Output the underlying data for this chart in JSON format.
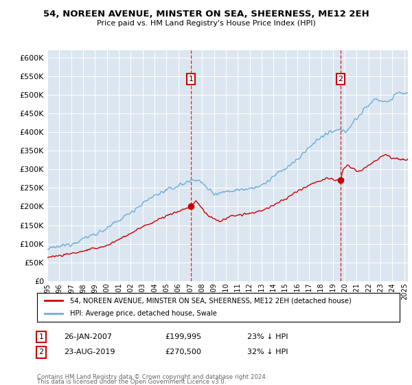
{
  "title": "54, NOREEN AVENUE, MINSTER ON SEA, SHEERNESS, ME12 2EH",
  "subtitle": "Price paid vs. HM Land Registry's House Price Index (HPI)",
  "ylim": [
    0,
    620000
  ],
  "yticks": [
    0,
    50000,
    100000,
    150000,
    200000,
    250000,
    300000,
    350000,
    400000,
    450000,
    500000,
    550000,
    600000
  ],
  "plot_bg": "#dce6f0",
  "hpi_color": "#6baed6",
  "price_color": "#cc0000",
  "sale1": {
    "date_label": "26-JAN-2007",
    "price": 199995,
    "price_str": "£199,995",
    "pct": "23% ↓ HPI",
    "x_year": 2007.07
  },
  "sale2": {
    "date_label": "23-AUG-2019",
    "price": 270500,
    "price_str": "£270,500",
    "pct": "32% ↓ HPI",
    "x_year": 2019.65
  },
  "legend_label_price": "54, NOREEN AVENUE, MINSTER ON SEA, SHEERNESS, ME12 2EH (detached house)",
  "legend_label_hpi": "HPI: Average price, detached house, Swale",
  "footnote1": "Contains HM Land Registry data © Crown copyright and database right 2024.",
  "footnote2": "This data is licensed under the Open Government Licence v3.0.",
  "xmin": 1995,
  "xmax": 2025.3
}
